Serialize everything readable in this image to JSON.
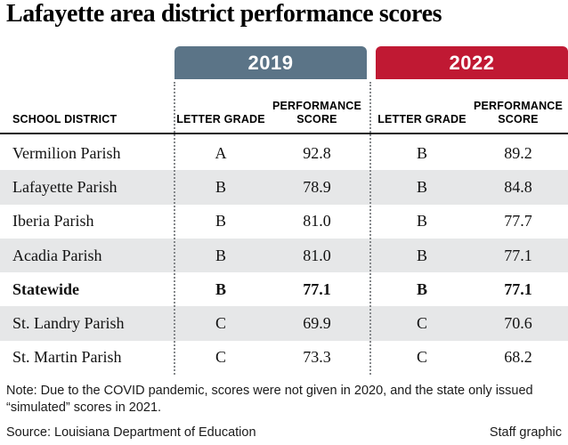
{
  "title": "Lafayette area district performance scores",
  "colors": {
    "banner_2019": "#5b7487",
    "banner_2022": "#c01933",
    "row_stripe": "#e6e7e8"
  },
  "banners": {
    "y2019": "2019",
    "y2022": "2022"
  },
  "headers": {
    "district": "SCHOOL DISTRICT",
    "letter_grade": "LETTER GRADE",
    "performance_score": "PERFORMANCE SCORE"
  },
  "table": {
    "rows": [
      {
        "district": "Vermilion Parish",
        "grade2019": "A",
        "score2019": "92.8",
        "grade2022": "B",
        "score2022": "89.2"
      },
      {
        "district": "Lafayette Parish",
        "grade2019": "B",
        "score2019": "78.9",
        "grade2022": "B",
        "score2022": "84.8"
      },
      {
        "district": "Iberia Parish",
        "grade2019": "B",
        "score2019": "81.0",
        "grade2022": "B",
        "score2022": "77.7"
      },
      {
        "district": "Acadia Parish",
        "grade2019": "B",
        "score2019": "81.0",
        "grade2022": "B",
        "score2022": "77.1"
      },
      {
        "district": "Statewide",
        "grade2019": "B",
        "score2019": "77.1",
        "grade2022": "B",
        "score2022": "77.1"
      },
      {
        "district": "St. Landry Parish",
        "grade2019": "C",
        "score2019": "69.9",
        "grade2022": "C",
        "score2022": "70.6"
      },
      {
        "district": "St. Martin Parish",
        "grade2019": "C",
        "score2019": "73.3",
        "grade2022": "C",
        "score2022": "68.2"
      }
    ]
  },
  "note": "Note: Due to the COVID pandemic, scores were not given in 2020, and the state only issued “simulated” scores in 2021.",
  "source": "Source: Louisiana Department of Education",
  "credit": "Staff graphic",
  "chart_data": {
    "type": "table",
    "title": "Lafayette area district performance scores",
    "column_groups": [
      "2019",
      "2022"
    ],
    "columns": [
      "SCHOOL DISTRICT",
      "2019 LETTER GRADE",
      "2019 PERFORMANCE SCORE",
      "2022 LETTER GRADE",
      "2022 PERFORMANCE SCORE"
    ],
    "rows": [
      [
        "Vermilion Parish",
        "A",
        92.8,
        "B",
        89.2
      ],
      [
        "Lafayette Parish",
        "B",
        78.9,
        "B",
        84.8
      ],
      [
        "Iberia Parish",
        "B",
        81.0,
        "B",
        77.7
      ],
      [
        "Acadia Parish",
        "B",
        81.0,
        "B",
        77.1
      ],
      [
        "Statewide",
        "B",
        77.1,
        "B",
        77.1
      ],
      [
        "St. Landry Parish",
        "C",
        69.9,
        "C",
        70.6
      ],
      [
        "St. Martin Parish",
        "C",
        73.3,
        "C",
        68.2
      ]
    ],
    "notes": "Scores not given in 2020 due to COVID pandemic; only simulated scores issued in 2021."
  }
}
